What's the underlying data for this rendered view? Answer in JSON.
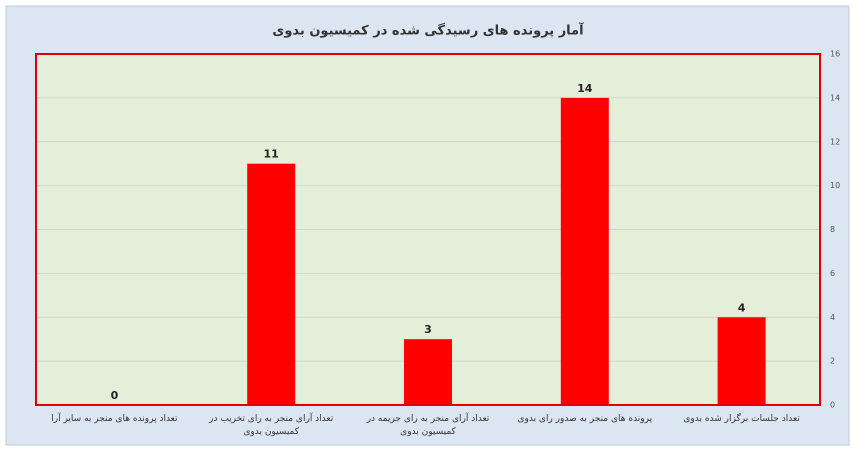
{
  "chart_data": {
    "type": "bar",
    "title": "آمار پرونده های رسیدگی شده در کمیسیون بدوی",
    "categories": [
      "تعداد پرونده های منجر به سایر آرا",
      "تعداد آرای منجر به رای تخریب در کمیسیون بدوی",
      "تعداد آرای منجر به رای جریمه در کمیسیون بدوی",
      "پرونده های منجر به صدور رای بدوی",
      "تعداد جلسات برگزار شده بدوی"
    ],
    "values": [
      0,
      11,
      3,
      14,
      4
    ],
    "color": "#ff0000",
    "ylim": [
      0,
      16
    ],
    "yticks": [
      0,
      2,
      4,
      6,
      8,
      10,
      12,
      14,
      16
    ],
    "grid": true
  }
}
